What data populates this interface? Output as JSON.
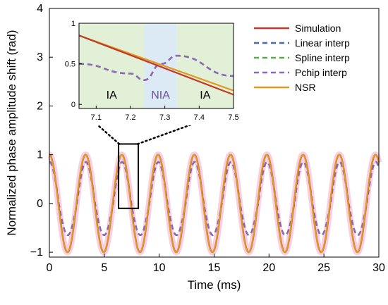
{
  "chart_data": {
    "type": "line",
    "xlabel": "Time (ms)",
    "ylabel": "Normalized phase amplitude shift (rad)",
    "xlim": [
      0,
      30
    ],
    "ylim": [
      -1.1,
      4
    ],
    "xticks": [
      "0",
      "5",
      "10",
      "15",
      "20",
      "25",
      "30"
    ],
    "yticks": [
      "-1",
      "0",
      "1",
      "2",
      "3",
      "4"
    ],
    "grid": false,
    "legend_position": "top-right",
    "oscillation": {
      "period_ms": 3.3,
      "interp_trough": -0.65
    },
    "series": [
      {
        "name": "Simulation",
        "color": "#c0392b",
        "peak": 1.0,
        "trough": -1.0
      },
      {
        "name": "Linear interp",
        "color": "#4a6fa5",
        "dashed": true
      },
      {
        "name": "Spline interp",
        "color": "#5aa84a",
        "dashed": true
      },
      {
        "name": "Pchip interp",
        "color": "#8a6ab0",
        "dashed": true,
        "peak": 0.85,
        "trough": -0.65
      },
      {
        "name": "NSR",
        "color": "#e09a20",
        "peak": 1.0,
        "trough": -1.0
      }
    ],
    "zoom_box": {
      "x_range": [
        6.3,
        8.1
      ],
      "y_range": [
        -0.1,
        1.22
      ]
    },
    "inset": {
      "xlim": [
        7.05,
        7.5
      ],
      "ylim": [
        -0.05,
        1.0
      ],
      "xticks": [
        "7.1",
        "7.2",
        "7.3",
        "7.4",
        "7.5"
      ],
      "yticks": [
        "0",
        "0.5",
        "1"
      ],
      "regions": [
        {
          "label": "IA",
          "x_range": [
            7.05,
            7.24
          ],
          "color": "#e1f0d6"
        },
        {
          "label": "NIA",
          "x_range": [
            7.24,
            7.335
          ],
          "color": "#dceaf6"
        },
        {
          "label": "IA",
          "x_range": [
            7.335,
            7.5
          ],
          "color": "#e1f0d6"
        }
      ],
      "simulation": {
        "x": [
          7.05,
          7.5
        ],
        "y": [
          0.85,
          0.12
        ]
      },
      "nsr": {
        "x": [
          7.05,
          7.5
        ],
        "y": [
          0.85,
          0.17
        ]
      },
      "pchip": {
        "x": [
          7.05,
          7.2,
          7.24,
          7.29,
          7.335,
          7.5
        ],
        "y": [
          0.5,
          0.38,
          0.3,
          0.5,
          0.6,
          0.35
        ]
      }
    }
  }
}
